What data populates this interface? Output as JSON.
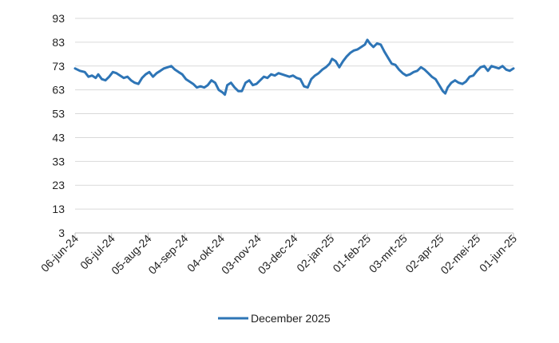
{
  "chart_data": {
    "type": "line",
    "title": "",
    "xlabel": "",
    "ylabel": "",
    "ylim": [
      3,
      93
    ],
    "y_ticks": [
      3,
      13,
      23,
      33,
      43,
      53,
      63,
      73,
      83,
      93
    ],
    "x_ticks": [
      "2024-06-06",
      "2024-07-06",
      "2024-08-05",
      "2024-09-04",
      "2024-10-04",
      "2024-11-03",
      "2024-12-03",
      "2025-01-02",
      "2025-02-01",
      "2025-03-03",
      "2025-04-02",
      "2025-05-02",
      "2025-06-01"
    ],
    "x_tick_labels": [
      "06-jun-24",
      "06-jul-24",
      "05-aug-24",
      "04-sep-24",
      "04-okt-24",
      "03-nov-24",
      "03-dec-24",
      "02-jan-25",
      "01-feb-25",
      "03-mrt-25",
      "02-apr-25",
      "02-mei-25",
      "01-jun-25"
    ],
    "grid": "horizontal",
    "legend_position": "bottom",
    "series_color": "#2e75b6",
    "series": [
      {
        "name": "December 2025",
        "points": [
          [
            "2024-06-06",
            72
          ],
          [
            "2024-06-10",
            71
          ],
          [
            "2024-06-14",
            70.5
          ],
          [
            "2024-06-17",
            68.5
          ],
          [
            "2024-06-20",
            69
          ],
          [
            "2024-06-23",
            68
          ],
          [
            "2024-06-25",
            69.5
          ],
          [
            "2024-06-28",
            67.5
          ],
          [
            "2024-07-01",
            67
          ],
          [
            "2024-07-04",
            68.5
          ],
          [
            "2024-07-07",
            70.5
          ],
          [
            "2024-07-10",
            70
          ],
          [
            "2024-07-13",
            69
          ],
          [
            "2024-07-16",
            68
          ],
          [
            "2024-07-19",
            68.5
          ],
          [
            "2024-07-22",
            67
          ],
          [
            "2024-07-25",
            66
          ],
          [
            "2024-07-28",
            65.5
          ],
          [
            "2024-07-31",
            68
          ],
          [
            "2024-08-03",
            69.5
          ],
          [
            "2024-08-06",
            70.5
          ],
          [
            "2024-08-09",
            68.5
          ],
          [
            "2024-08-12",
            70
          ],
          [
            "2024-08-15",
            71
          ],
          [
            "2024-08-18",
            72
          ],
          [
            "2024-08-21",
            72.5
          ],
          [
            "2024-08-24",
            73
          ],
          [
            "2024-08-27",
            71.5
          ],
          [
            "2024-08-30",
            70.5
          ],
          [
            "2024-09-02",
            69.5
          ],
          [
            "2024-09-05",
            67.5
          ],
          [
            "2024-09-08",
            66.5
          ],
          [
            "2024-09-11",
            65.5
          ],
          [
            "2024-09-14",
            64
          ],
          [
            "2024-09-17",
            64.5
          ],
          [
            "2024-09-20",
            64
          ],
          [
            "2024-09-23",
            65
          ],
          [
            "2024-09-26",
            67
          ],
          [
            "2024-09-29",
            66
          ],
          [
            "2024-10-02",
            63
          ],
          [
            "2024-10-05",
            62
          ],
          [
            "2024-10-07",
            61
          ],
          [
            "2024-10-09",
            65
          ],
          [
            "2024-10-12",
            66
          ],
          [
            "2024-10-15",
            64
          ],
          [
            "2024-10-18",
            62.5
          ],
          [
            "2024-10-21",
            62.5
          ],
          [
            "2024-10-24",
            66
          ],
          [
            "2024-10-27",
            67
          ],
          [
            "2024-10-30",
            65
          ],
          [
            "2024-11-02",
            65.5
          ],
          [
            "2024-11-05",
            67
          ],
          [
            "2024-11-08",
            68.5
          ],
          [
            "2024-11-11",
            68
          ],
          [
            "2024-11-14",
            69.5
          ],
          [
            "2024-11-17",
            69
          ],
          [
            "2024-11-20",
            70
          ],
          [
            "2024-11-23",
            69.5
          ],
          [
            "2024-11-26",
            69
          ],
          [
            "2024-11-29",
            68.5
          ],
          [
            "2024-12-02",
            69
          ],
          [
            "2024-12-05",
            68
          ],
          [
            "2024-12-08",
            67.5
          ],
          [
            "2024-12-11",
            64.5
          ],
          [
            "2024-12-14",
            64
          ],
          [
            "2024-12-17",
            67.5
          ],
          [
            "2024-12-20",
            69
          ],
          [
            "2024-12-23",
            70
          ],
          [
            "2024-12-26",
            71.5
          ],
          [
            "2024-12-29",
            72.5
          ],
          [
            "2025-01-01",
            74
          ],
          [
            "2025-01-03",
            76
          ],
          [
            "2025-01-06",
            75
          ],
          [
            "2025-01-09",
            72.5
          ],
          [
            "2025-01-12",
            75
          ],
          [
            "2025-01-15",
            77
          ],
          [
            "2025-01-18",
            78.5
          ],
          [
            "2025-01-21",
            79.5
          ],
          [
            "2025-01-24",
            80
          ],
          [
            "2025-01-27",
            81
          ],
          [
            "2025-01-30",
            82
          ],
          [
            "2025-02-01",
            84
          ],
          [
            "2025-02-03",
            82.5
          ],
          [
            "2025-02-06",
            81
          ],
          [
            "2025-02-09",
            82.5
          ],
          [
            "2025-02-12",
            82
          ],
          [
            "2025-02-15",
            79
          ],
          [
            "2025-02-18",
            76.5
          ],
          [
            "2025-02-21",
            74
          ],
          [
            "2025-02-24",
            73.5
          ],
          [
            "2025-02-27",
            71.5
          ],
          [
            "2025-03-02",
            70
          ],
          [
            "2025-03-05",
            69
          ],
          [
            "2025-03-08",
            69.5
          ],
          [
            "2025-03-11",
            70.5
          ],
          [
            "2025-03-14",
            71
          ],
          [
            "2025-03-17",
            72.5
          ],
          [
            "2025-03-20",
            71.5
          ],
          [
            "2025-03-23",
            70
          ],
          [
            "2025-03-26",
            68.5
          ],
          [
            "2025-03-29",
            67.5
          ],
          [
            "2025-04-01",
            65
          ],
          [
            "2025-04-04",
            62.5
          ],
          [
            "2025-04-06",
            61.5
          ],
          [
            "2025-04-08",
            64
          ],
          [
            "2025-04-11",
            66
          ],
          [
            "2025-04-14",
            67
          ],
          [
            "2025-04-17",
            66
          ],
          [
            "2025-04-20",
            65.5
          ],
          [
            "2025-04-23",
            66.5
          ],
          [
            "2025-04-26",
            68.5
          ],
          [
            "2025-04-29",
            69
          ],
          [
            "2025-05-02",
            71
          ],
          [
            "2025-05-05",
            72.5
          ],
          [
            "2025-05-08",
            73
          ],
          [
            "2025-05-11",
            71
          ],
          [
            "2025-05-14",
            73
          ],
          [
            "2025-05-17",
            72.5
          ],
          [
            "2025-05-20",
            72
          ],
          [
            "2025-05-23",
            73
          ],
          [
            "2025-05-26",
            71.5
          ],
          [
            "2025-05-29",
            71
          ],
          [
            "2025-06-01",
            72
          ]
        ]
      }
    ]
  }
}
